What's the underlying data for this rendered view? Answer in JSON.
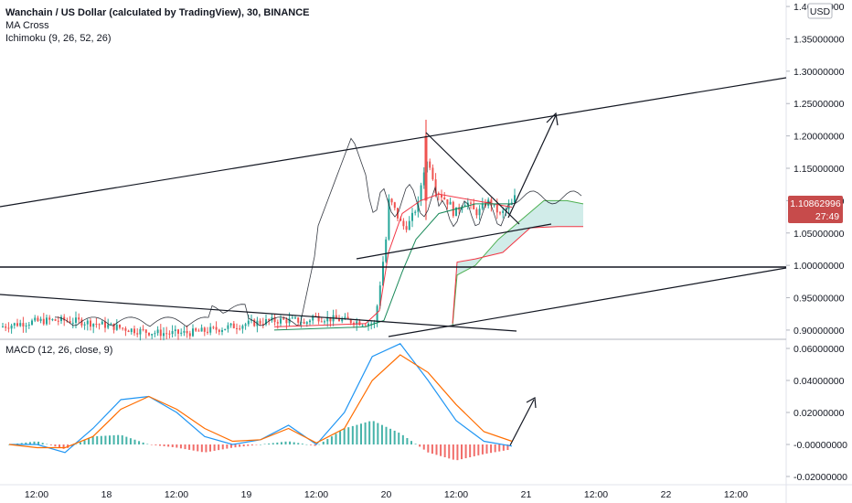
{
  "header": {
    "title": "Wanchain / US Dollar (calculated by TradingView), 30, BINANCE",
    "indicator_1": "MA Cross",
    "indicator_2": "Ichimoku (9, 26, 52, 26)",
    "currency": "USD"
  },
  "price_tag": {
    "value": "1.10862996",
    "countdown": "27:49"
  },
  "macd_label": "MACD (12, 26, close, 9)",
  "colors": {
    "bull": "#26a69a",
    "bear": "#ef5350",
    "ma_black": "#131722",
    "ma_red": "#f23645",
    "ma_green": "#1b8a5a",
    "cloud": "#b2dfdb",
    "macd": "#2196f3",
    "signal": "#ff6d00",
    "tag": "#c74b4b"
  },
  "chart_data": [
    {
      "type": "candlestick",
      "panel": "price",
      "title": "Wanchain / US Dollar (calculated by TradingView), 30, BINANCE",
      "ylim": [
        0.89,
        1.41
      ],
      "y_ticks": [
        "1.40000000",
        "1.35000000",
        "1.30000000",
        "1.25000000",
        "1.20000000",
        "1.15000000",
        "1.10000000",
        "1.05000000",
        "1.00000000",
        "0.95000000",
        "0.90000000"
      ],
      "x_ticks": [
        "12:00",
        "18",
        "12:00",
        "19",
        "12:00",
        "20",
        "12:00",
        "21",
        "12:00",
        "22",
        "12:00"
      ],
      "last_price": 1.10862996,
      "ma_cross_fast": [
        [
          0,
          0.905
        ],
        [
          6,
          0.91
        ],
        [
          8,
          0.905
        ],
        [
          10,
          0.91
        ],
        [
          11,
          0.93
        ],
        [
          12,
          1.02
        ],
        [
          13,
          1.1
        ],
        [
          14,
          1.13
        ],
        [
          15,
          1.12
        ],
        [
          16,
          1.11
        ],
        [
          17,
          1.095
        ],
        [
          18,
          1.09
        ]
      ],
      "ma_cross_slow": [
        [
          0,
          0.9
        ],
        [
          8,
          0.905
        ],
        [
          10,
          0.905
        ],
        [
          11,
          0.91
        ],
        [
          12,
          0.94
        ],
        [
          13,
          1.04
        ],
        [
          14,
          1.08
        ],
        [
          15,
          1.1
        ],
        [
          16,
          1.105
        ],
        [
          17,
          1.1
        ],
        [
          18,
          1.095
        ]
      ],
      "trendlines": [
        {
          "from": [
            0,
            1.09
          ],
          "to": [
            22,
            1.315
          ]
        },
        {
          "from": [
            0,
            0.962
          ],
          "to": [
            15,
            0.902
          ]
        },
        {
          "from": [
            0,
            1.005
          ],
          "to": [
            22,
            1.005
          ]
        },
        {
          "from": [
            11,
            0.89
          ],
          "to": [
            22,
            1.005
          ]
        }
      ],
      "annotations": [
        "triangle pattern breakout arrow toward 1.25"
      ]
    },
    {
      "type": "macd",
      "panel": "macd",
      "title": "MACD (12, 26, close, 9)",
      "ylim": [
        -0.024,
        0.064
      ],
      "y_ticks": [
        "0.06000000",
        "0.04000000",
        "0.02000000",
        "-0.00000000",
        "-0.02000000"
      ],
      "macd_line": [
        [
          0,
          0.0
        ],
        [
          1,
          0.0
        ],
        [
          2,
          -0.005
        ],
        [
          3,
          0.01
        ],
        [
          4,
          0.028
        ],
        [
          5,
          0.03
        ],
        [
          6,
          0.02
        ],
        [
          7,
          0.005
        ],
        [
          8,
          0.0
        ],
        [
          9,
          0.003
        ],
        [
          10,
          0.012
        ],
        [
          11,
          0.0
        ],
        [
          12,
          0.02
        ],
        [
          13,
          0.055
        ],
        [
          14,
          0.063
        ],
        [
          15,
          0.04
        ],
        [
          16,
          0.015
        ],
        [
          17,
          0.002
        ],
        [
          18,
          -0.001
        ]
      ],
      "signal_line": [
        [
          0,
          0.0
        ],
        [
          1,
          -0.002
        ],
        [
          2,
          -0.002
        ],
        [
          3,
          0.005
        ],
        [
          4,
          0.022
        ],
        [
          5,
          0.03
        ],
        [
          6,
          0.022
        ],
        [
          7,
          0.01
        ],
        [
          8,
          0.002
        ],
        [
          9,
          0.003
        ],
        [
          10,
          0.01
        ],
        [
          11,
          0.001
        ],
        [
          12,
          0.01
        ],
        [
          13,
          0.04
        ],
        [
          14,
          0.056
        ],
        [
          15,
          0.045
        ],
        [
          16,
          0.025
        ],
        [
          17,
          0.008
        ],
        [
          18,
          0.002
        ]
      ]
    }
  ]
}
